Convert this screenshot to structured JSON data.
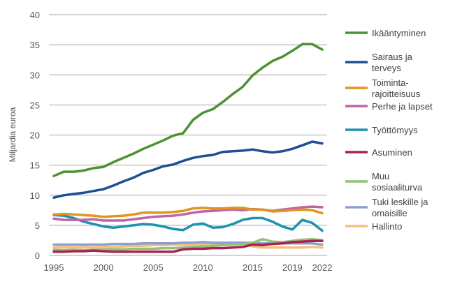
{
  "chart_data": {
    "type": "line",
    "ylabel": "Miljardia euroa",
    "xlabel": "",
    "ylim": [
      0,
      40
    ],
    "yticks": [
      0,
      5,
      10,
      15,
      20,
      25,
      30,
      35,
      40
    ],
    "xtick_labels": [
      "1995",
      "2000",
      "2005",
      "2010",
      "2015",
      "2019",
      "2022"
    ],
    "grid": true,
    "legend_position": "right",
    "x": [
      1995,
      1996,
      1997,
      1998,
      1999,
      2000,
      2001,
      2002,
      2003,
      2004,
      2005,
      2006,
      2007,
      2008,
      2009,
      2010,
      2011,
      2012,
      2013,
      2014,
      2015,
      2016,
      2017,
      2018,
      2019,
      2020,
      2021,
      2022
    ],
    "series": [
      {
        "name": "Ikääntyminen",
        "label_lines": [
          "Ikääntyminen"
        ],
        "color": "#4a9330",
        "values": [
          13.2,
          13.9,
          13.9,
          14.1,
          14.5,
          14.7,
          15.5,
          16.2,
          16.9,
          17.7,
          18.4,
          19.1,
          19.9,
          20.3,
          22.5,
          23.7,
          24.3,
          25.5,
          26.8,
          28.0,
          29.9,
          31.2,
          32.3,
          33.0,
          34.0,
          35.1,
          35.1,
          34.2
        ]
      },
      {
        "name": "Sairaus ja terveys",
        "label_lines": [
          "Sairaus ja",
          "terveys"
        ],
        "color": "#1f4e96",
        "values": [
          9.6,
          10.0,
          10.2,
          10.4,
          10.7,
          11.0,
          11.6,
          12.3,
          12.9,
          13.7,
          14.2,
          14.8,
          15.1,
          15.7,
          16.2,
          16.5,
          16.7,
          17.2,
          17.3,
          17.4,
          17.6,
          17.3,
          17.1,
          17.3,
          17.7,
          18.3,
          18.9,
          18.6
        ]
      },
      {
        "name": "Toiminta-rajoitteisuus",
        "label_lines": [
          "Toiminta-",
          "rajoitteisuus"
        ],
        "color": "#e0951e",
        "values": [
          6.8,
          6.9,
          6.8,
          6.7,
          6.6,
          6.4,
          6.5,
          6.6,
          6.8,
          7.1,
          7.1,
          7.1,
          7.2,
          7.4,
          7.8,
          7.9,
          7.8,
          7.8,
          7.9,
          7.9,
          7.6,
          7.6,
          7.3,
          7.4,
          7.5,
          7.6,
          7.5,
          7.0
        ]
      },
      {
        "name": "Perhe ja lapset",
        "label_lines": [
          "Perhe ja lapset"
        ],
        "color": "#c064a8",
        "values": [
          6.1,
          5.9,
          5.9,
          5.9,
          6.0,
          5.8,
          5.8,
          5.8,
          6.0,
          6.2,
          6.4,
          6.5,
          6.6,
          6.8,
          7.1,
          7.3,
          7.4,
          7.5,
          7.6,
          7.5,
          7.7,
          7.6,
          7.4,
          7.6,
          7.8,
          8.0,
          8.1,
          8.0
        ]
      },
      {
        "name": "Työttömyys",
        "label_lines": [
          "Työttömyys"
        ],
        "color": "#1e93ae",
        "values": [
          6.7,
          6.6,
          6.2,
          5.6,
          5.2,
          4.8,
          4.6,
          4.8,
          5.0,
          5.2,
          5.1,
          4.8,
          4.4,
          4.2,
          5.1,
          5.3,
          4.6,
          4.7,
          5.2,
          5.9,
          6.2,
          6.2,
          5.6,
          4.8,
          4.3,
          5.9,
          5.4,
          4.1
        ]
      },
      {
        "name": "Asuminen",
        "label_lines": [
          "Asuminen"
        ],
        "color": "#a8234f",
        "values": [
          0.6,
          0.6,
          0.7,
          0.7,
          0.8,
          0.7,
          0.6,
          0.6,
          0.6,
          0.6,
          0.6,
          0.6,
          0.6,
          1.0,
          1.1,
          1.1,
          1.2,
          1.2,
          1.3,
          1.4,
          1.8,
          1.7,
          1.9,
          2.0,
          2.2,
          2.3,
          2.4,
          2.4
        ]
      },
      {
        "name": "Muu sosiaaliturva",
        "label_lines": [
          "Muu",
          "sosiaaliturva"
        ],
        "color": "#94c07a",
        "values": [
          0.9,
          0.9,
          0.9,
          0.9,
          0.9,
          1.0,
          1.0,
          1.0,
          1.1,
          1.1,
          1.1,
          1.2,
          1.2,
          1.3,
          1.4,
          1.5,
          1.6,
          1.7,
          1.8,
          1.9,
          2.1,
          2.7,
          2.3,
          2.2,
          2.4,
          2.6,
          2.7,
          2.5
        ]
      },
      {
        "name": "Tuki leskille ja omaisille",
        "label_lines": [
          "Tuki leskille ja",
          "omaisille"
        ],
        "color": "#8d9fd0",
        "values": [
          1.8,
          1.8,
          1.8,
          1.8,
          1.8,
          1.8,
          1.9,
          1.9,
          1.9,
          2.0,
          2.0,
          2.0,
          2.0,
          2.1,
          2.1,
          2.2,
          2.1,
          2.1,
          2.1,
          2.1,
          2.1,
          2.0,
          2.0,
          2.0,
          2.0,
          2.0,
          2.0,
          1.8
        ]
      },
      {
        "name": "Hallinto",
        "label_lines": [
          "Hallinto"
        ],
        "color": "#f5bf80",
        "values": [
          1.3,
          1.4,
          1.3,
          1.4,
          1.3,
          1.4,
          1.4,
          1.5,
          1.6,
          1.6,
          1.7,
          1.7,
          1.8,
          1.8,
          1.8,
          1.9,
          1.9,
          1.9,
          2.0,
          2.0,
          1.5,
          1.3,
          1.3,
          1.3,
          1.3,
          1.3,
          1.4,
          1.3
        ]
      }
    ]
  }
}
